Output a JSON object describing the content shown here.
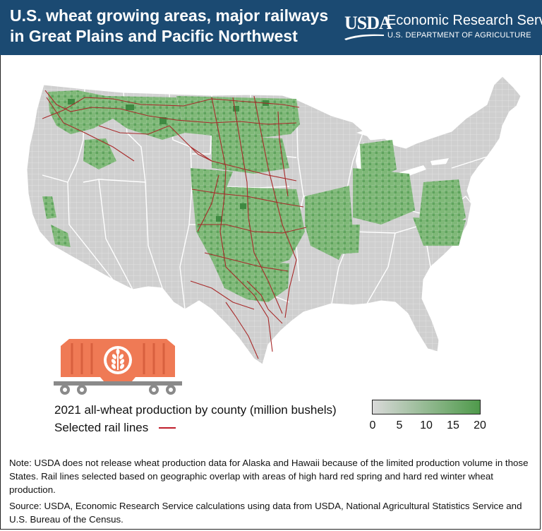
{
  "header": {
    "title": "U.S. wheat growing areas, major railways in Great Plains and Pacific Northwest",
    "brand_logo": "USDA",
    "brand_name": "Economic Research Service",
    "brand_department": "U.S. DEPARTMENT OF AGRICULTURE"
  },
  "legend": {
    "production_label": "2021 all-wheat production by county (million bushels)",
    "rail_label": "Selected rail lines",
    "scale_ticks": [
      "0",
      "5",
      "10",
      "15",
      "20"
    ],
    "scale_min_color": "#d9d9d9",
    "scale_max_color": "#4f9a4b",
    "rail_color": "#c01e2b"
  },
  "map": {
    "base_color": "#cfcfcf",
    "wheat_color": "#7fb878",
    "wheat_dark_color": "#3f8a42",
    "rail_color": "#a82a2a"
  },
  "icons": {
    "railcar": "hopper-railcar-icon",
    "wheat": "wheat-icon"
  },
  "footer": {
    "note": "Note: USDA does not release wheat production data for Alaska and Hawaii because of the limited production volume in those States.  Rail lines selected based on geographic overlap with areas of high hard red spring and hard red winter wheat production.",
    "source": "Source: USDA, Economic Research Service calculations using data from USDA, National Agricultural Statistics Service and U.S. Bureau of the Census."
  }
}
